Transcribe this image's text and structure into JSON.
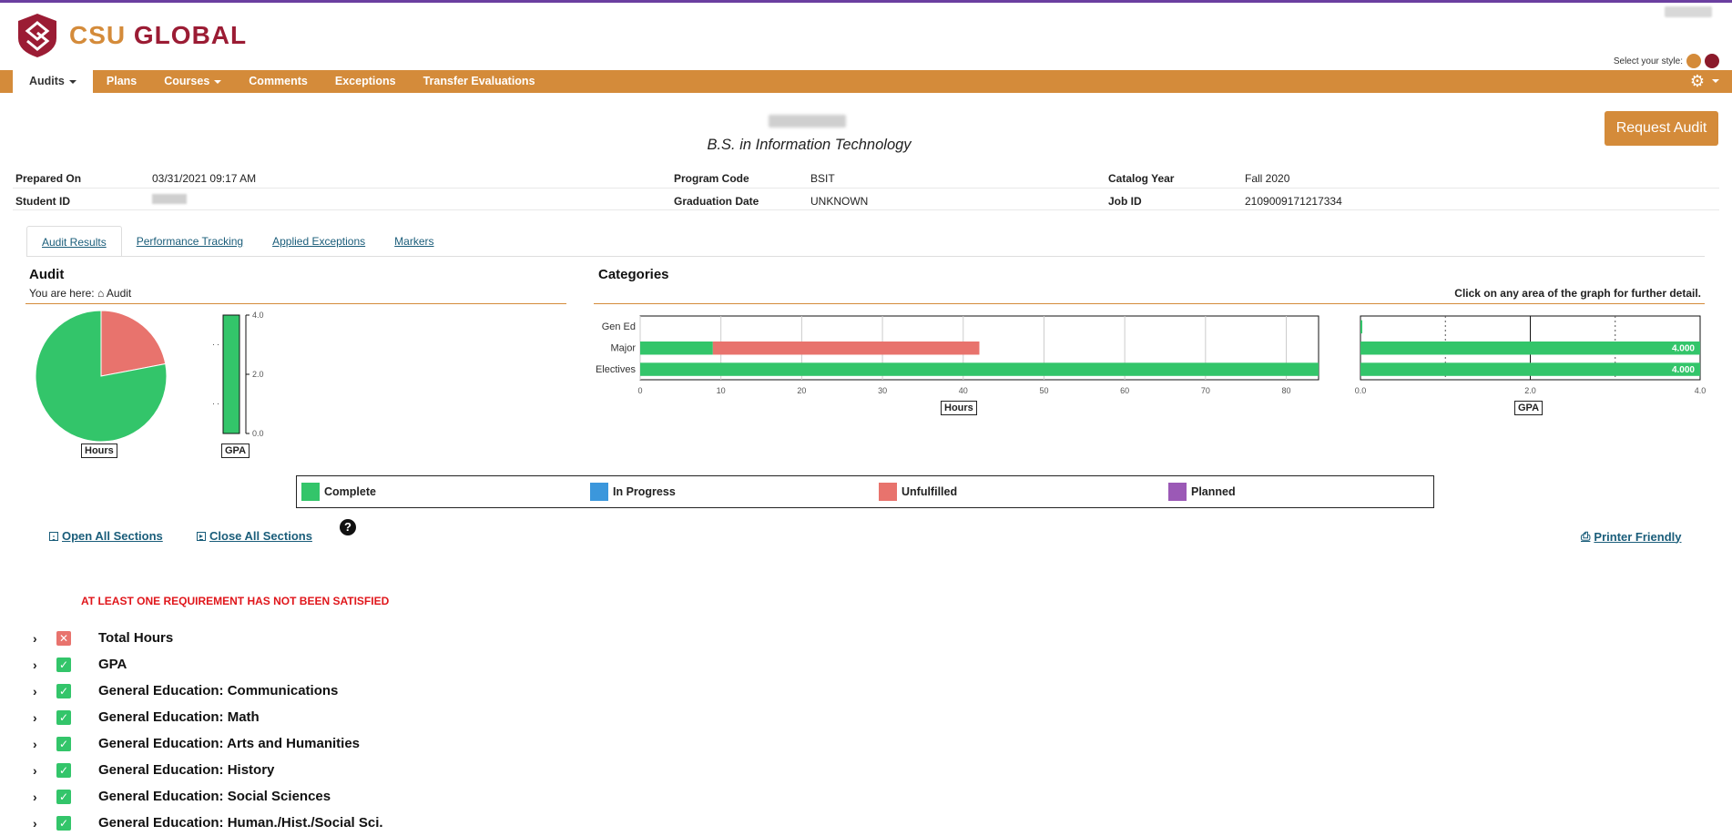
{
  "brand": {
    "part1": "CSU",
    "part2": " GLOBAL"
  },
  "style_select_label": "Select your style:",
  "style_colors": [
    "#d48b3a",
    "#8b1a2b"
  ],
  "nav": {
    "items": [
      {
        "label": "Audits",
        "dropdown": true,
        "active": true
      },
      {
        "label": "Plans",
        "dropdown": false
      },
      {
        "label": "Courses",
        "dropdown": true
      },
      {
        "label": "Comments",
        "dropdown": false
      },
      {
        "label": "Exceptions",
        "dropdown": false
      },
      {
        "label": "Transfer Evaluations",
        "dropdown": false
      }
    ]
  },
  "program_title": "B.S. in Information Technology",
  "request_audit_label": "Request Audit",
  "info": {
    "prepared_on_label": "Prepared On",
    "prepared_on": "03/31/2021 09:17 AM",
    "student_id_label": "Student ID",
    "program_code_label": "Program Code",
    "program_code": "BSIT",
    "graduation_date_label": "Graduation Date",
    "graduation_date": "UNKNOWN",
    "catalog_year_label": "Catalog Year",
    "catalog_year": "Fall 2020",
    "job_id_label": "Job ID",
    "job_id": "2109009171217334"
  },
  "tabs": [
    "Audit Results",
    "Performance Tracking",
    "Applied Exceptions",
    "Markers"
  ],
  "audit_panel": {
    "title": "Audit",
    "breadcrumb_prefix": "You are here:",
    "breadcrumb_item": "Audit"
  },
  "categories_panel": {
    "title": "Categories",
    "note": "Click on any area of the graph for further detail."
  },
  "chart_data": [
    {
      "type": "pie",
      "xlabel": "Hours",
      "slices": [
        {
          "label": "Complete",
          "value": 78,
          "color": "#33c56a"
        },
        {
          "label": "Unfulfilled",
          "value": 22,
          "color": "#e8736d"
        }
      ]
    },
    {
      "type": "bar",
      "xlabel": "GPA",
      "values": [
        4.0
      ],
      "ylim": [
        0,
        4.0
      ],
      "ticks": [
        "4.0",
        "2.0",
        "0.0"
      ],
      "color": "#33c56a"
    },
    {
      "type": "bar",
      "orientation": "horizontal",
      "stacked": true,
      "xlabel": "Hours",
      "categories": [
        "Gen Ed",
        "Major",
        "Electives"
      ],
      "series": [
        {
          "name": "Complete",
          "values": [
            0,
            9,
            84
          ],
          "color": "#33c56a"
        },
        {
          "name": "Unfulfilled",
          "values": [
            0,
            33,
            0
          ],
          "color": "#e8736d"
        }
      ],
      "xlim": [
        0,
        84
      ],
      "ticks": [
        "0",
        "10",
        "20",
        "30",
        "40",
        "50",
        "60",
        "70",
        "80"
      ]
    },
    {
      "type": "bar",
      "orientation": "horizontal",
      "xlabel": "GPA",
      "categories": [
        "Gen Ed",
        "Major",
        "Electives"
      ],
      "values": [
        0.0,
        4.0,
        4.0
      ],
      "data_labels": [
        "",
        "4.000",
        "4.000"
      ],
      "xlim": [
        0,
        4.0
      ],
      "ticks": [
        "0.0",
        "2.0",
        "4.0"
      ],
      "color": "#33c56a"
    }
  ],
  "legend": [
    {
      "label": "Complete",
      "color": "#33c56a"
    },
    {
      "label": "In Progress",
      "color": "#3b97dc"
    },
    {
      "label": "Unfulfilled",
      "color": "#e8736d"
    },
    {
      "label": "Planned",
      "color": "#9b59b6"
    }
  ],
  "open_all_label": "Open All Sections",
  "close_all_label": "Close All Sections",
  "printer_label": "Printer Friendly",
  "warning": "AT LEAST ONE REQUIREMENT HAS NOT BEEN SATISFIED",
  "requirements": [
    {
      "name": "Total Hours",
      "status": "no"
    },
    {
      "name": "GPA",
      "status": "ok"
    },
    {
      "name": "General Education: Communications",
      "status": "ok"
    },
    {
      "name": "General Education: Math",
      "status": "ok"
    },
    {
      "name": "General Education: Arts and Humanities",
      "status": "ok"
    },
    {
      "name": "General Education: History",
      "status": "ok"
    },
    {
      "name": "General Education: Social Sciences",
      "status": "ok"
    },
    {
      "name": "General Education: Human./Hist./Social Sci.",
      "status": "ok"
    }
  ]
}
